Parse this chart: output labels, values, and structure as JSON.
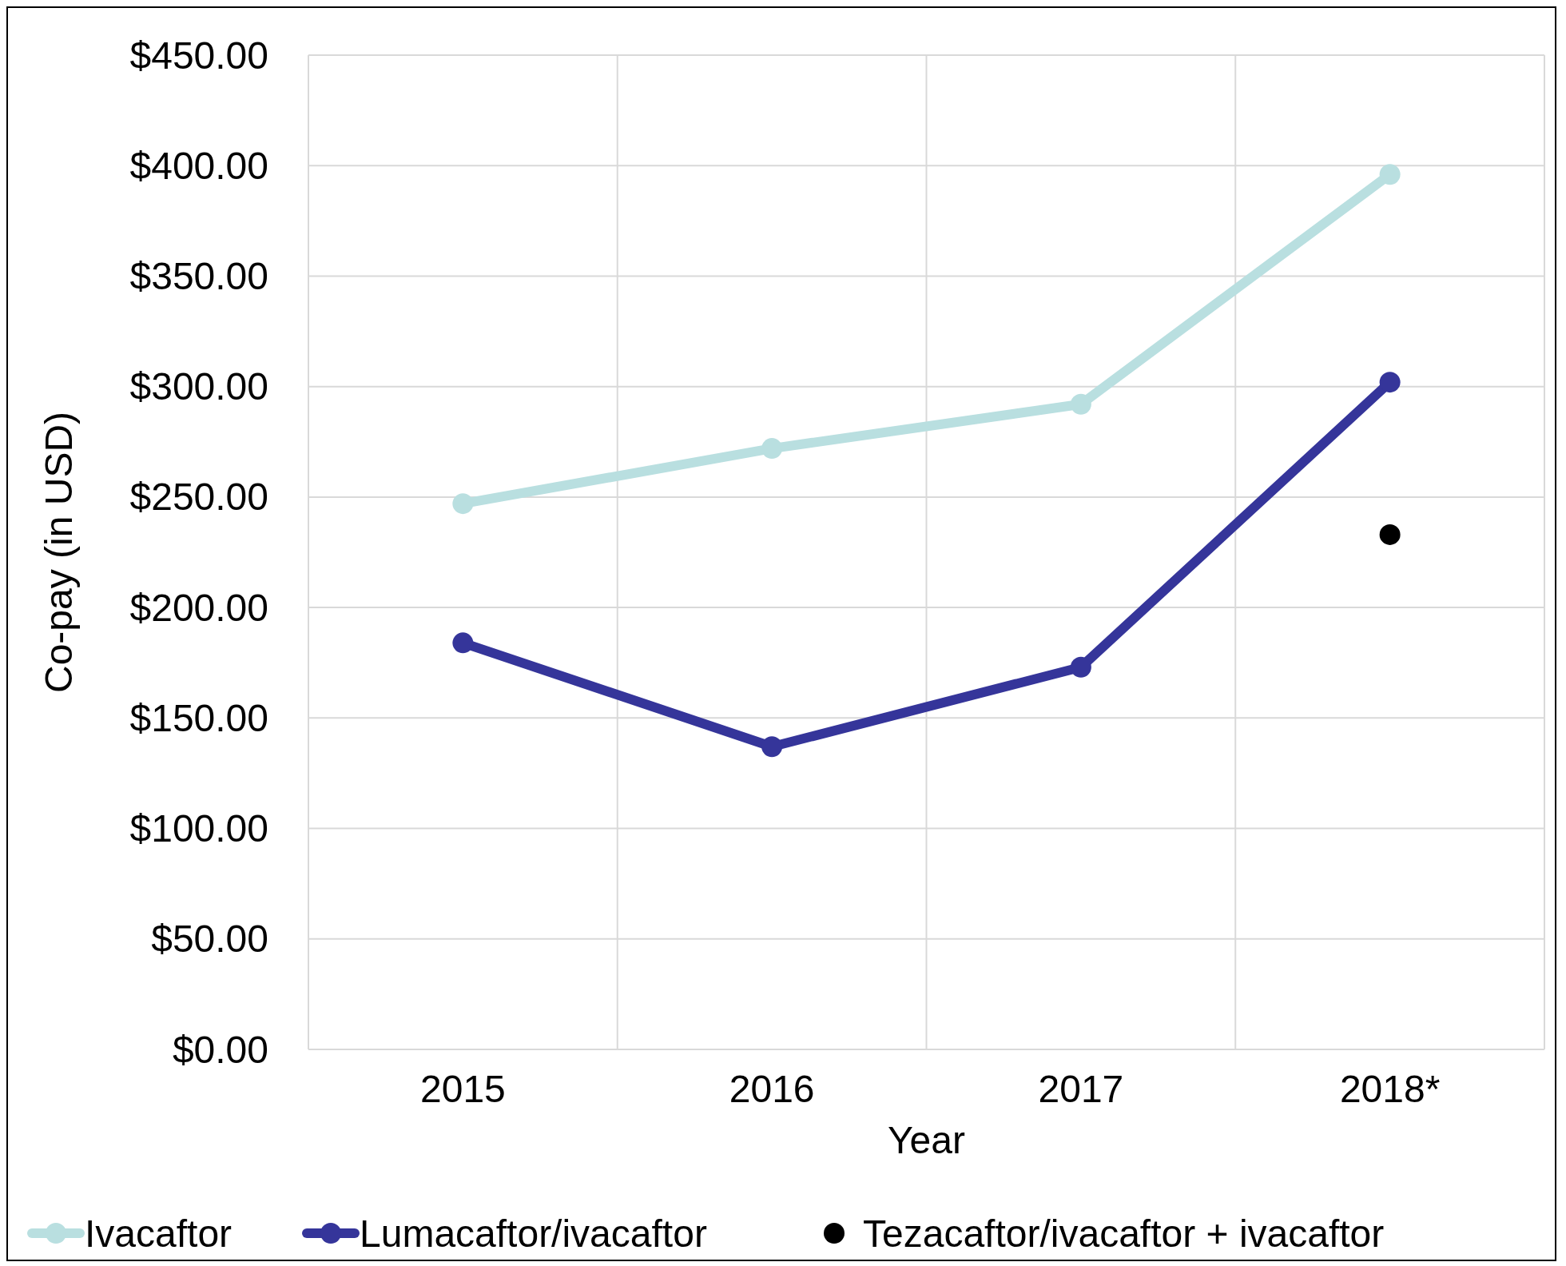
{
  "chart_data": {
    "type": "line",
    "xlabel": "Year",
    "ylabel": "Co-pay (in USD)",
    "categories": [
      "2015",
      "2016",
      "2017",
      "2018*"
    ],
    "series": [
      {
        "name": "Ivacaftor",
        "color": "#b9dfe0",
        "values": [
          247,
          272,
          292,
          396
        ]
      },
      {
        "name": "Lumacaftor/ivacaftor",
        "color": "#35359a",
        "values": [
          184,
          137,
          173,
          302
        ]
      },
      {
        "name": "Tezacaftor/ivacaftor + ivacaftor",
        "color": "#000000",
        "type": "scatter",
        "values": [
          null,
          null,
          null,
          233
        ]
      }
    ],
    "ylim": [
      0,
      450
    ],
    "yticks": [
      {
        "value": 0,
        "label": "$0.00"
      },
      {
        "value": 50,
        "label": "$50.00"
      },
      {
        "value": 100,
        "label": "$100.00"
      },
      {
        "value": 150,
        "label": "$150.00"
      },
      {
        "value": 200,
        "label": "$200.00"
      },
      {
        "value": 250,
        "label": "$250.00"
      },
      {
        "value": 300,
        "label": "$300.00"
      },
      {
        "value": 350,
        "label": "$350.00"
      },
      {
        "value": 400,
        "label": "$400.00"
      },
      {
        "value": 450,
        "label": "$450.00"
      }
    ],
    "grid": true,
    "legend": "bottom",
    "marker": "circle"
  }
}
